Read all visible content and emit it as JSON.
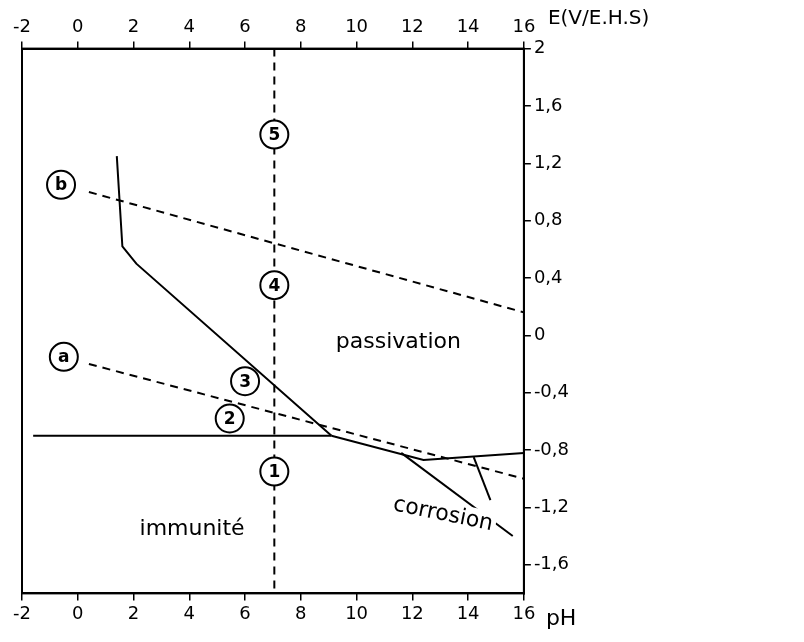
{
  "chart_data": {
    "type": "line",
    "x_label": "pH",
    "y_label": "E(V/E.H.S)",
    "xlim": [
      -2,
      16
    ],
    "xticks": [
      -2,
      0,
      2,
      4,
      6,
      8,
      10,
      12,
      14,
      16
    ],
    "ylim": [
      -1.8,
      2
    ],
    "yticks": [
      {
        "value": -1.6,
        "label": "-1,6"
      },
      {
        "value": -1.2,
        "label": "-1,2"
      },
      {
        "value": -0.8,
        "label": "-0,8"
      },
      {
        "value": -0.4,
        "label": "-0,4"
      },
      0,
      {
        "value": 0.4,
        "label": "0,4"
      },
      {
        "value": 0.8,
        "label": "0,8"
      },
      {
        "value": 1.2,
        "label": "1,2"
      },
      {
        "value": 1.6,
        "label": "1,6"
      },
      2
    ],
    "grid": false,
    "series": [
      {
        "x": [
          -1.6,
          9.1
        ],
        "values": [
          -0.7,
          -0.7
        ],
        "color": "#000000",
        "line_style": "solid"
      },
      {
        "x": [
          1.4,
          1.6,
          2.1,
          9.1
        ],
        "values": [
          1.25,
          0.62,
          0.5,
          -0.7
        ],
        "color": "#000000",
        "line_style": "solid"
      },
      {
        "x": [
          9.1,
          12.4,
          16
        ],
        "values": [
          -0.7,
          -0.87,
          -0.82
        ],
        "color": "#000000",
        "line_style": "solid"
      },
      {
        "x": [
          11.6,
          15.6
        ],
        "values": [
          -0.82,
          -1.4
        ],
        "color": "#000000",
        "line_style": "solid"
      },
      {
        "x": [
          14.2,
          14.8
        ],
        "values": [
          -0.85,
          -1.15
        ],
        "color": "#000000",
        "line_style": "solid"
      },
      {
        "x": [
          0.4,
          16
        ],
        "values": [
          1.0,
          0.16
        ],
        "color": "#000000",
        "line_style": "dashed"
      },
      {
        "x": [
          0.4,
          16
        ],
        "values": [
          -0.2,
          -1.0
        ],
        "color": "#000000",
        "line_style": "dashed"
      },
      {
        "x": [
          7.05,
          7.05
        ],
        "values": [
          2,
          -1.8
        ],
        "color": "#000000",
        "line_style": "dashed"
      }
    ],
    "annotations": [
      {
        "text": "passivation",
        "x": 11.5,
        "y": -0.05
      },
      {
        "text": "immunité",
        "x": 4.1,
        "y": -1.35
      },
      {
        "text": "corrosion",
        "x": 13.1,
        "y": -1.25
      },
      {
        "text": "1",
        "x": 7.05,
        "y": -0.95,
        "marker": "circle"
      },
      {
        "text": "2",
        "x": 5.45,
        "y": -0.58,
        "marker": "circle"
      },
      {
        "text": "3",
        "x": 6.0,
        "y": -0.32,
        "marker": "circle"
      },
      {
        "text": "4",
        "x": 7.05,
        "y": 0.35,
        "marker": "circle"
      },
      {
        "text": "5",
        "x": 7.05,
        "y": 1.4,
        "marker": "circle"
      },
      {
        "text": "b",
        "x": -0.6,
        "y": 1.05,
        "marker": "circle"
      },
      {
        "text": "a",
        "x": -0.5,
        "y": -0.15,
        "marker": "circle"
      }
    ]
  }
}
